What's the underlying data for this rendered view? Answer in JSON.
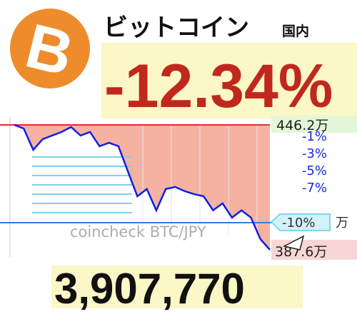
{
  "header": {
    "title": "ビットコイン",
    "badge": "国内",
    "change": "-12.34%"
  },
  "chart_data": {
    "type": "line",
    "color": "#1020e0",
    "area_color": "#f4a590",
    "values": [
      446.2,
      444.5,
      434.5,
      439.5,
      441.2,
      442.9,
      445.2,
      441.2,
      442.9,
      436.2,
      437.8,
      436.2,
      424.4,
      412.7,
      416.1,
      406.1,
      416.1,
      417.1,
      415.1,
      413.7,
      412.7,
      406.1,
      409.4,
      402.7,
      406.1,
      402.7,
      392.6,
      387.6
    ],
    "ylim": [
      387.6,
      446.2
    ],
    "high_label": "446.2万",
    "low_label": "387.6万",
    "levels": [
      "-1%",
      "-3%",
      "-5%",
      "-7%"
    ],
    "marker_label": "-10%",
    "marker_unit": "万",
    "watermark": "coincheck BTC/JPY"
  },
  "price": "3,907,770"
}
